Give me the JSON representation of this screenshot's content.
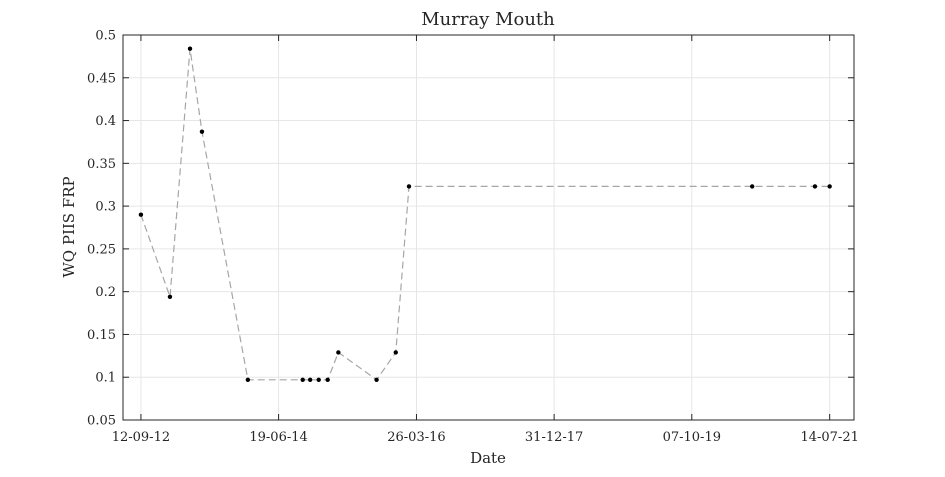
{
  "chart_data": {
    "type": "line",
    "title": "Murray Mouth",
    "xlabel": "Date",
    "ylabel": "WQ PIIS FRP",
    "x_tick_labels": [
      "12-09-12",
      "19-06-14",
      "26-03-16",
      "31-12-17",
      "07-10-19",
      "14-07-21"
    ],
    "x_tick_dates": [
      "2012-09-12",
      "2014-06-19",
      "2016-03-26",
      "2017-12-31",
      "2019-10-07",
      "2021-07-14"
    ],
    "xlim": [
      "2012-06-20",
      "2021-11-05"
    ],
    "y_tick_labels": [
      "0.05",
      "0.1",
      "0.15",
      "0.2",
      "0.25",
      "0.3",
      "0.35",
      "0.4",
      "0.45",
      "0.5"
    ],
    "ylim": [
      0.05,
      0.5
    ],
    "grid": true,
    "series": [
      {
        "line_style": "dashed",
        "line_color": "#a6a6a6",
        "marker_color": "#000000",
        "points": [
          {
            "x": "2012-09-12",
            "y": 0.29
          },
          {
            "x": "2013-01-26",
            "y": 0.194
          },
          {
            "x": "2013-04-30",
            "y": 0.484
          },
          {
            "x": "2013-06-25",
            "y": 0.387
          },
          {
            "x": "2014-01-26",
            "y": 0.097
          },
          {
            "x": "2014-10-10",
            "y": 0.097
          },
          {
            "x": "2014-11-14",
            "y": 0.097
          },
          {
            "x": "2014-12-24",
            "y": 0.097
          },
          {
            "x": "2015-02-04",
            "y": 0.097
          },
          {
            "x": "2015-03-26",
            "y": 0.129
          },
          {
            "x": "2015-09-21",
            "y": 0.097
          },
          {
            "x": "2015-12-20",
            "y": 0.129
          },
          {
            "x": "2016-02-20",
            "y": 0.323
          },
          {
            "x": "2020-07-16",
            "y": 0.323
          },
          {
            "x": "2021-05-06",
            "y": 0.323
          },
          {
            "x": "2021-07-14",
            "y": 0.323
          }
        ]
      }
    ]
  }
}
